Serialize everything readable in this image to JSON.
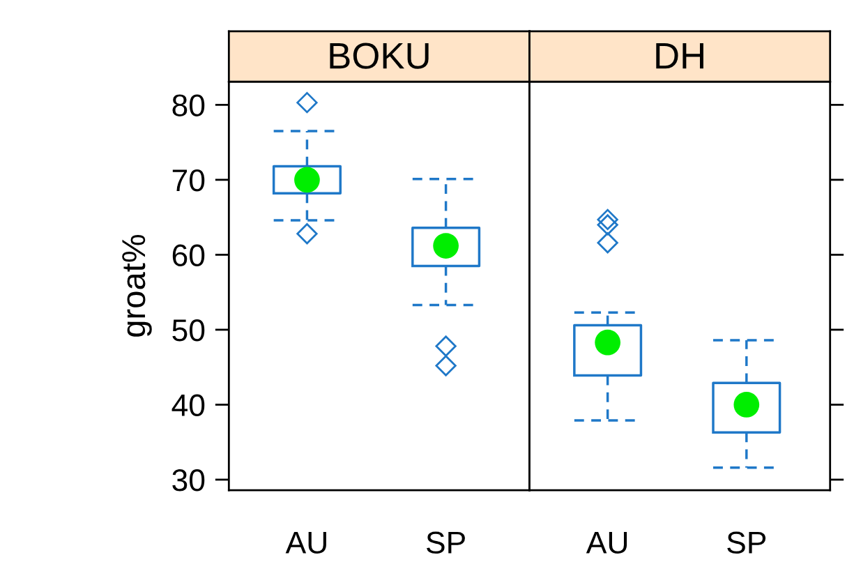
{
  "chart_data": [
    {
      "type": "box",
      "title": "BOKU",
      "ylabel": "groat%",
      "categories": [
        "AU",
        "SP"
      ],
      "ylim": [
        28.6,
        83.1
      ],
      "yticks": [
        30,
        40,
        50,
        60,
        70,
        80
      ],
      "grid": false,
      "legend": false,
      "marker": "diamond",
      "series": [
        {
          "color": "#1f78c8",
          "boxes": [
            {
              "low": 64.6,
              "q1": 68.2,
              "median": 70.0,
              "q3": 71.8,
              "high": 76.5,
              "outliers": [
                80.3,
                62.8
              ]
            },
            {
              "low": 53.3,
              "q1": 58.5,
              "median": 61.2,
              "q3": 63.6,
              "high": 70.1,
              "outliers": [
                47.8,
                45.2
              ]
            }
          ]
        }
      ]
    },
    {
      "type": "box",
      "title": "DH",
      "categories": [
        "AU",
        "SP"
      ],
      "ylim": [
        28.6,
        83.1
      ],
      "yticks": [
        30,
        40,
        50,
        60,
        70,
        80
      ],
      "tick_labels": "x",
      "grid": false,
      "legend": false,
      "marker": "diamond",
      "series": [
        {
          "color": "#1f78c8",
          "boxes": [
            {
              "low": 37.9,
              "q1": 43.9,
              "median": 48.3,
              "q3": 50.6,
              "high": 52.3,
              "outliers": [
                64.7,
                64.0,
                61.6
              ]
            },
            {
              "low": 31.6,
              "q1": 36.3,
              "median": 40.0,
              "q3": 42.9,
              "high": 48.6
            }
          ]
        }
      ]
    }
  ]
}
